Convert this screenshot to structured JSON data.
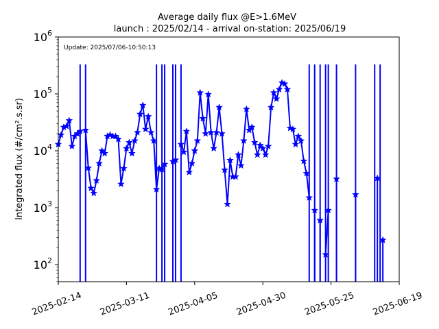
{
  "chart_data": {
    "type": "line",
    "title": "Average daily flux @E>1.6MeV",
    "subtitle": "launch : 2025/02/14 - arrival on-station: 2025/06/19",
    "annotation": "Update: 2025/07/06-10:50:13",
    "ylabel": "Integrated flux (#/cm².s.sr)",
    "xlabel": "",
    "yscale": "log",
    "ylim": [
      50,
      1000000
    ],
    "xlim": [
      "2025-02-14",
      "2025-06-19"
    ],
    "yticks": [
      {
        "value": 100,
        "base": "10",
        "exp": "2"
      },
      {
        "value": 1000,
        "base": "10",
        "exp": "3"
      },
      {
        "value": 10000,
        "base": "10",
        "exp": "4"
      },
      {
        "value": 100000,
        "base": "10",
        "exp": "5"
      },
      {
        "value": 1000000,
        "base": "10",
        "exp": "6"
      }
    ],
    "xticks": [
      "2025-02-14",
      "2025-03-11",
      "2025-04-05",
      "2025-04-30",
      "2025-05-25",
      "2025-06-19"
    ],
    "grid": false,
    "color": "#0000ff",
    "marker": "star",
    "series": [
      {
        "x": [
          "2025-02-14",
          "2025-02-15",
          "2025-02-16",
          "2025-02-17",
          "2025-02-18",
          "2025-02-19",
          "2025-02-20",
          "2025-02-21",
          "2025-02-22",
          "2025-02-23",
          "2025-02-24",
          "2025-02-25",
          "2025-02-26",
          "2025-02-27",
          "2025-02-28",
          "2025-03-01",
          "2025-03-02",
          "2025-03-03",
          "2025-03-04",
          "2025-03-05",
          "2025-03-06",
          "2025-03-07",
          "2025-03-08",
          "2025-03-09",
          "2025-03-10",
          "2025-03-11",
          "2025-03-12",
          "2025-03-13",
          "2025-03-14",
          "2025-03-15",
          "2025-03-16",
          "2025-03-17",
          "2025-03-18",
          "2025-03-19",
          "2025-03-20",
          "2025-03-21",
          "2025-03-22",
          "2025-03-23",
          "2025-03-24",
          "2025-03-25",
          "2025-03-26",
          "2025-03-27",
          "2025-03-28",
          "2025-03-29",
          "2025-03-30",
          "2025-03-31",
          "2025-04-01",
          "2025-04-02",
          "2025-04-03",
          "2025-04-04",
          "2025-04-05",
          "2025-04-06",
          "2025-04-07",
          "2025-04-08",
          "2025-04-09",
          "2025-04-10",
          "2025-04-11",
          "2025-04-12",
          "2025-04-13",
          "2025-04-14",
          "2025-04-15",
          "2025-04-16",
          "2025-04-17",
          "2025-04-18",
          "2025-04-19",
          "2025-04-20",
          "2025-04-21",
          "2025-04-22",
          "2025-04-23",
          "2025-04-24",
          "2025-04-25",
          "2025-04-26",
          "2025-04-27",
          "2025-04-28",
          "2025-04-29",
          "2025-04-30",
          "2025-05-01",
          "2025-05-02",
          "2025-05-03",
          "2025-05-04",
          "2025-05-05",
          "2025-05-06",
          "2025-05-07",
          "2025-05-08",
          "2025-05-09",
          "2025-05-10",
          "2025-05-11",
          "2025-05-12",
          "2025-05-13",
          "2025-05-14",
          "2025-05-15",
          "2025-05-16",
          "2025-05-17",
          "2025-05-18",
          "2025-05-19",
          "2025-05-20",
          "2025-05-21",
          "2025-05-22",
          "2025-05-23",
          "2025-05-24",
          "2025-05-25",
          "2025-05-26",
          "2025-05-27",
          "2025-05-28",
          "2025-05-29",
          "2025-05-30",
          "2025-05-31",
          "2025-06-01",
          "2025-06-02",
          "2025-06-03",
          "2025-06-04",
          "2025-06-05",
          "2025-06-06",
          "2025-06-07",
          "2025-06-08",
          "2025-06-09",
          "2025-06-10",
          "2025-06-11",
          "2025-06-12",
          "2025-06-13",
          "2025-06-14",
          "2025-06-15",
          "2025-06-16",
          "2025-06-17",
          "2025-06-18",
          "2025-06-19"
        ],
        "values": [
          13000,
          19000,
          26000,
          27000,
          34000,
          12000,
          18000,
          20000,
          22000,
          null,
          23000,
          5000,
          2200,
          1800,
          3000,
          6000,
          10000,
          9000,
          18000,
          19000,
          18000,
          18000,
          16000,
          2600,
          4900,
          11000,
          14000,
          9000,
          15000,
          21000,
          44000,
          63000,
          24000,
          40000,
          21000,
          15000,
          2100,
          4900,
          4700,
          5800,
          null,
          null,
          6500,
          6900,
          null,
          13000,
          9500,
          22000,
          4200,
          6000,
          10000,
          15000,
          105000,
          37000,
          20000,
          98000,
          21000,
          11000,
          21000,
          58000,
          20000,
          4600,
          1150,
          6800,
          3500,
          3500,
          8500,
          5500,
          15000,
          54000,
          23000,
          26000,
          14000,
          8500,
          12500,
          11000,
          8500,
          12000,
          58000,
          105000,
          82000,
          120000,
          157000,
          150000,
          120000,
          25000,
          24000,
          13000,
          18000,
          15000,
          6600,
          4000,
          1500,
          null,
          900,
          null,
          600,
          null,
          150,
          900,
          null,
          null,
          3200,
          null,
          null,
          null,
          null,
          null,
          null,
          1700,
          null,
          null,
          null,
          null,
          null,
          null,
          null,
          3300,
          null,
          270,
          null,
          null,
          null,
          null,
          null,
          null
        ]
      }
    ],
    "drops": [
      "2025-02-22",
      "2025-02-24",
      "2025-03-22",
      "2025-03-24",
      "2025-03-25",
      "2025-03-28",
      "2025-03-29",
      "2025-03-31",
      "2025-05-17",
      "2025-05-19",
      "2025-05-21",
      "2025-05-23",
      "2025-05-24",
      "2025-05-27",
      "2025-06-03",
      "2025-06-10",
      "2025-06-12"
    ]
  }
}
